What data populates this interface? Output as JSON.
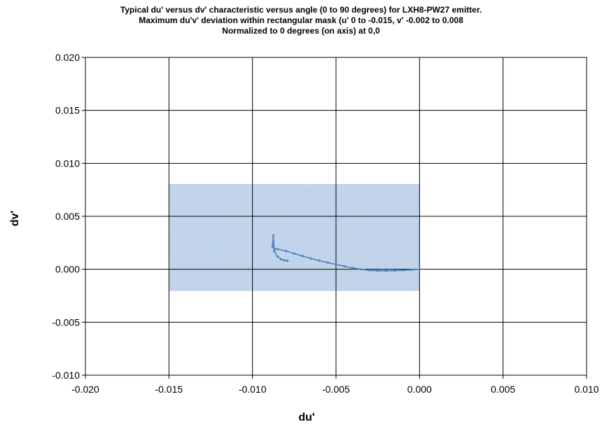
{
  "chart_data": {
    "type": "scatter",
    "title": [
      "Typical du' versus dv' characteristic versus angle (0 to 90 degrees) for LXH8-PW27 emitter.",
      "Maximum du'v' deviation within rectangular mask (u' 0 to -0.015, v' -0.002 to 0.008",
      "Normalized to 0 degrees (on axis) at 0,0"
    ],
    "xlabel": "du'",
    "ylabel": "dv'",
    "xlim": [
      -0.02,
      0.01
    ],
    "ylim": [
      -0.01,
      0.02
    ],
    "x_ticks": [
      "-0.020",
      "-0.015",
      "-0.010",
      "-0.005",
      "0.000",
      "0.005",
      "0.010"
    ],
    "y_ticks": [
      "0.020",
      "0.015",
      "0.010",
      "0.005",
      "0.000",
      "-0.005",
      "-0.010"
    ],
    "x_tick_values": [
      -0.02,
      -0.015,
      -0.01,
      -0.005,
      0.0,
      0.005,
      0.01
    ],
    "y_tick_values": [
      0.02,
      0.015,
      0.01,
      0.005,
      0.0,
      -0.005,
      -0.01
    ],
    "grid": true,
    "mask": {
      "x": [
        -0.015,
        0.0
      ],
      "y": [
        -0.002,
        0.008
      ],
      "color": "#c5d6ec"
    },
    "series": [
      {
        "color": "#4f7fbf",
        "points": [
          [
            0.0,
            0.0
          ],
          [
            -0.0005,
            -5e-05
          ],
          [
            -0.001,
            -0.0001
          ],
          [
            -0.0015,
            -0.00013
          ],
          [
            -0.002,
            -0.00014
          ],
          [
            -0.0025,
            -0.00014
          ],
          [
            -0.003,
            -0.0001
          ],
          [
            -0.0035,
            0.0
          ],
          [
            -0.004,
            0.00012
          ],
          [
            -0.0045,
            0.00028
          ],
          [
            -0.005,
            0.00045
          ],
          [
            -0.0055,
            0.00063
          ],
          [
            -0.006,
            0.00082
          ],
          [
            -0.0065,
            0.00102
          ],
          [
            -0.007,
            0.00124
          ],
          [
            -0.0075,
            0.00148
          ],
          [
            -0.008,
            0.00172
          ],
          [
            -0.0085,
            0.0019
          ],
          [
            -0.0087,
            0.00195
          ],
          [
            -0.0088,
            0.00215
          ],
          [
            -0.00875,
            0.0032
          ],
          [
            -0.0087,
            0.0017
          ],
          [
            -0.0085,
            0.0012
          ],
          [
            -0.0083,
            0.00095
          ],
          [
            -0.0081,
            0.00085
          ],
          [
            -0.0079,
            0.0008
          ]
        ]
      }
    ]
  },
  "colors": {
    "grid": "#000000",
    "series": "#4f7fbf",
    "mask": "#c5d6ec"
  }
}
